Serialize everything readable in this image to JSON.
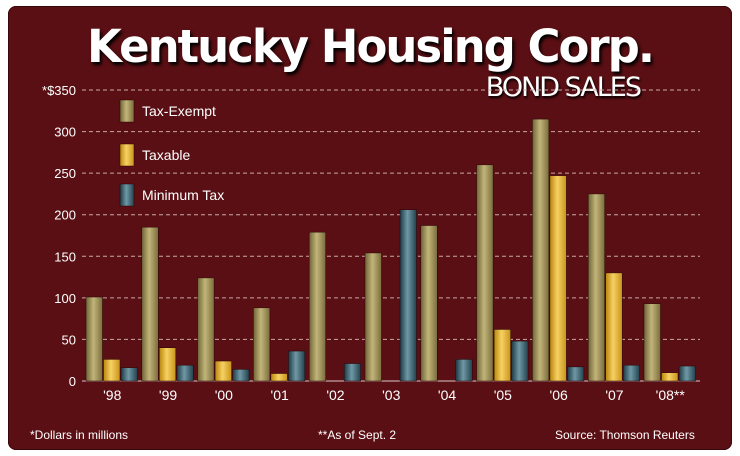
{
  "header": {
    "title": "Kentucky Housing Corp.",
    "subtitle": "BOND SALES"
  },
  "footer": {
    "note_left": "*Dollars in millions",
    "note_center": "**As of Sept. 2",
    "source": "Source: Thomson Reuters"
  },
  "colors": {
    "background": "#5a0f14",
    "grid": "#c9a8a8",
    "tax_exempt": "#a89a5e",
    "taxable": "#e8b62a",
    "minimum_tax": "#2f5663"
  },
  "chart_data": {
    "type": "bar",
    "title": "Kentucky Housing Corp. Bond Sales",
    "ylabel": "Dollars in millions",
    "ylim": [
      0,
      350
    ],
    "yticks": [
      0,
      50,
      100,
      150,
      200,
      250,
      300,
      350
    ],
    "ytick_labels": [
      "0",
      "50",
      "100",
      "150",
      "200",
      "250",
      "300",
      "*$350"
    ],
    "grid": true,
    "legend_position": "top-left",
    "categories": [
      "'98",
      "'99",
      "'00",
      "'01",
      "'02",
      "'03",
      "'04",
      "'05",
      "'06",
      "'07",
      "'08**"
    ],
    "series": [
      {
        "name": "Tax-Exempt",
        "color": "#a89a5e",
        "values": [
          101,
          185,
          124,
          88,
          179,
          154,
          187,
          260,
          315,
          225,
          93
        ]
      },
      {
        "name": "Taxable",
        "color": "#e8b62a",
        "values": [
          26,
          40,
          24,
          9,
          0,
          0,
          0,
          62,
          247,
          130,
          10
        ]
      },
      {
        "name": "Minimum Tax",
        "color": "#2f5663",
        "values": [
          16,
          19,
          14,
          36,
          21,
          206,
          26,
          48,
          17,
          19,
          18
        ]
      }
    ]
  }
}
